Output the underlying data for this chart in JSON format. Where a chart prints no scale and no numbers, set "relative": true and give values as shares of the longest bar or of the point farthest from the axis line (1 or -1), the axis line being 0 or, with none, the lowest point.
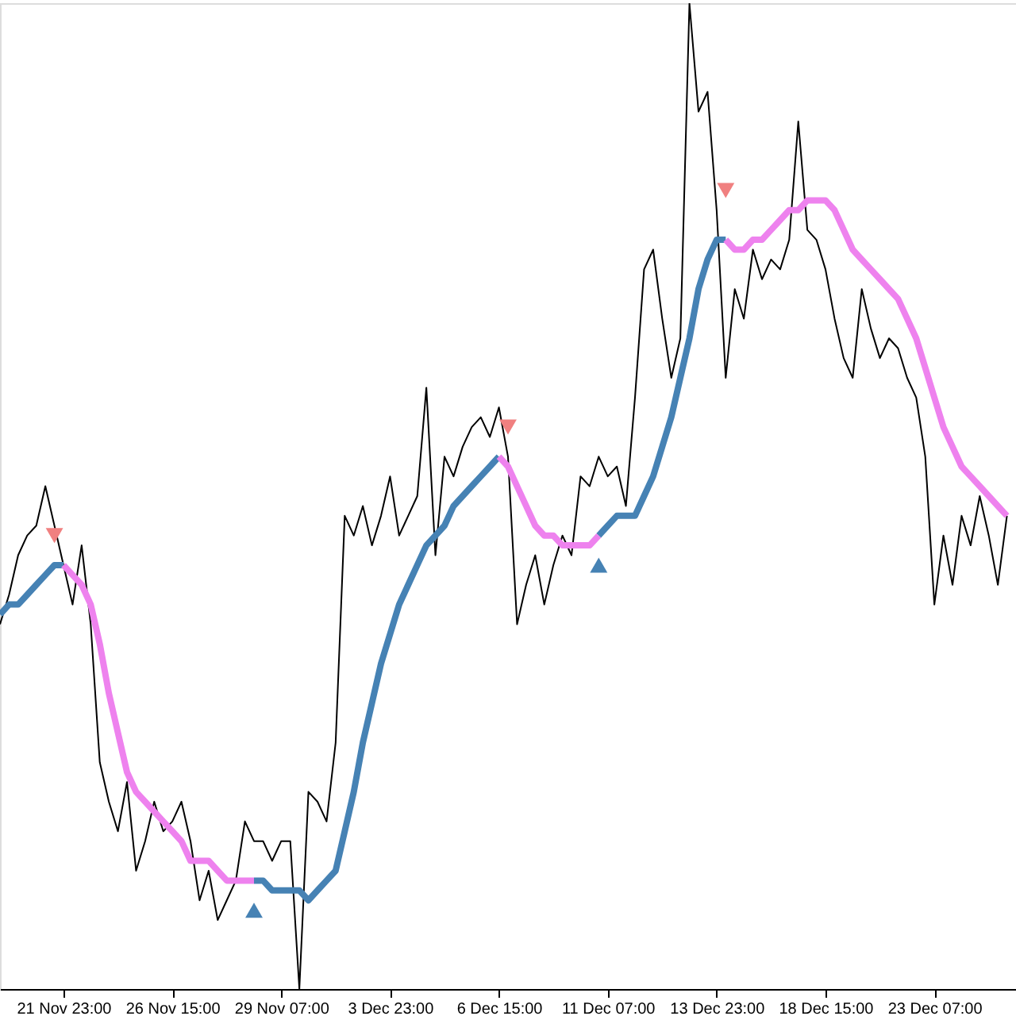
{
  "chart_data": {
    "type": "line",
    "relative": true,
    "grid": false,
    "line_style": "solid",
    "categories": [
      null,
      null,
      null,
      null,
      null,
      null,
      null,
      "21 Nov 23:00",
      null,
      null,
      null,
      null,
      null,
      null,
      null,
      null,
      null,
      null,
      null,
      "26 Nov 15:00",
      null,
      null,
      null,
      null,
      null,
      null,
      null,
      null,
      null,
      null,
      null,
      "29 Nov 07:00",
      null,
      null,
      null,
      null,
      null,
      null,
      null,
      null,
      null,
      null,
      null,
      "3 Dec 23:00",
      null,
      null,
      null,
      null,
      null,
      null,
      null,
      null,
      null,
      null,
      null,
      "6 Dec 15:00",
      null,
      null,
      null,
      null,
      null,
      null,
      null,
      null,
      null,
      null,
      null,
      "11 Dec 07:00",
      null,
      null,
      null,
      null,
      null,
      null,
      null,
      null,
      null,
      null,
      null,
      "13 Dec 23:00",
      null,
      null,
      null,
      null,
      null,
      null,
      null,
      null,
      null,
      null,
      null,
      "18 Dec 15:00",
      null,
      null,
      null,
      null,
      null,
      null,
      null,
      null,
      null,
      null,
      null,
      "23 Dec 07:00",
      null,
      null,
      null,
      null,
      null,
      null,
      null,
      null
    ],
    "series": [
      {
        "color": "#000000",
        "values": [
          0.37,
          0.4,
          0.44,
          0.46,
          0.47,
          0.51,
          0.47,
          0.43,
          0.39,
          0.45,
          0.37,
          0.23,
          0.19,
          0.16,
          0.21,
          0.12,
          0.15,
          0.19,
          0.16,
          0.17,
          0.19,
          0.15,
          0.09,
          0.12,
          0.07,
          0.09,
          0.11,
          0.17,
          0.15,
          0.15,
          0.13,
          0.15,
          0.15,
          0.0,
          0.2,
          0.19,
          0.17,
          0.25,
          0.48,
          0.46,
          0.49,
          0.45,
          0.48,
          0.52,
          0.46,
          0.48,
          0.5,
          0.61,
          0.44,
          0.54,
          0.52,
          0.55,
          0.57,
          0.58,
          0.56,
          0.59,
          0.54,
          0.37,
          0.41,
          0.44,
          0.39,
          0.43,
          0.46,
          0.44,
          0.52,
          0.51,
          0.54,
          0.52,
          0.53,
          0.49,
          0.6,
          0.73,
          0.75,
          0.68,
          0.62,
          0.66,
          1.0,
          0.89,
          0.91,
          0.79,
          0.62,
          0.71,
          0.68,
          0.75,
          0.72,
          0.74,
          0.73,
          0.76,
          0.88,
          0.77,
          0.76,
          0.73,
          0.68,
          0.64,
          0.62,
          0.71,
          0.67,
          0.64,
          0.66,
          0.65,
          0.62,
          0.6,
          0.54,
          0.39,
          0.46,
          0.41,
          0.48,
          0.45,
          0.5,
          0.46,
          0.41,
          0.48
        ]
      },
      {
        "color": "#4682b4",
        "values": [
          0.38,
          0.39,
          0.39,
          0.4,
          0.41,
          0.42,
          0.43,
          0.43,
          null,
          null,
          null,
          null,
          null,
          null,
          null,
          null,
          null,
          null,
          null,
          null,
          null,
          null,
          null,
          null,
          null,
          null,
          null,
          null,
          0.11,
          0.11,
          0.1,
          0.1,
          0.1,
          0.1,
          0.09,
          0.1,
          0.11,
          0.12,
          0.16,
          0.2,
          0.25,
          0.29,
          0.33,
          0.36,
          0.39,
          0.41,
          0.43,
          0.45,
          0.46,
          0.47,
          0.49,
          0.5,
          0.51,
          0.52,
          0.53,
          0.54,
          null,
          null,
          null,
          null,
          null,
          null,
          null,
          null,
          null,
          null,
          0.46,
          0.47,
          0.48,
          0.48,
          0.48,
          0.5,
          0.52,
          0.55,
          0.58,
          0.62,
          0.66,
          0.71,
          0.74,
          0.76,
          0.76,
          null,
          null,
          null,
          null,
          null,
          null,
          null,
          null,
          null,
          null,
          null,
          null,
          null,
          null,
          null,
          null,
          null,
          null,
          null,
          null,
          null,
          null,
          null,
          null,
          null,
          null,
          null,
          null,
          null,
          null,
          null
        ]
      },
      {
        "color": "#ee82ee",
        "values": [
          null,
          null,
          null,
          null,
          null,
          null,
          null,
          0.43,
          0.42,
          0.41,
          0.39,
          0.35,
          0.3,
          0.26,
          0.22,
          0.2,
          0.19,
          0.18,
          0.17,
          0.16,
          0.15,
          0.13,
          0.13,
          0.13,
          0.12,
          0.11,
          0.11,
          0.11,
          0.11,
          null,
          null,
          null,
          null,
          null,
          null,
          null,
          null,
          null,
          null,
          null,
          null,
          null,
          null,
          null,
          null,
          null,
          null,
          null,
          null,
          null,
          null,
          null,
          null,
          null,
          null,
          0.54,
          0.53,
          0.51,
          0.49,
          0.47,
          0.46,
          0.46,
          0.45,
          0.45,
          0.45,
          0.45,
          0.46,
          null,
          null,
          null,
          null,
          null,
          null,
          null,
          null,
          null,
          null,
          null,
          null,
          null,
          0.76,
          0.75,
          0.75,
          0.76,
          0.76,
          0.77,
          0.78,
          0.79,
          0.79,
          0.8,
          0.8,
          0.8,
          0.79,
          0.77,
          0.75,
          0.74,
          0.73,
          0.72,
          0.71,
          0.7,
          0.68,
          0.66,
          0.63,
          0.6,
          0.57,
          0.55,
          0.53,
          0.52,
          0.51,
          0.5,
          0.49,
          0.48
        ]
      },
      {
        "type": "scatter",
        "marker": "triangle",
        "color": "#f08080",
        "values": [
          null,
          null,
          null,
          null,
          null,
          null,
          0.46,
          null,
          null,
          null,
          null,
          null,
          null,
          null,
          null,
          null,
          null,
          null,
          null,
          null,
          null,
          null,
          null,
          null,
          null,
          null,
          null,
          null,
          null,
          null,
          null,
          null,
          null,
          null,
          null,
          null,
          null,
          null,
          null,
          null,
          null,
          null,
          null,
          null,
          null,
          null,
          null,
          null,
          null,
          null,
          null,
          null,
          null,
          null,
          null,
          null,
          0.57,
          null,
          null,
          null,
          null,
          null,
          null,
          null,
          null,
          null,
          null,
          null,
          null,
          null,
          null,
          null,
          null,
          null,
          null,
          null,
          null,
          null,
          null,
          null,
          0.81,
          null,
          null,
          null,
          null,
          null,
          null,
          null,
          null,
          null,
          null,
          null,
          null,
          null,
          null,
          null,
          null,
          null,
          null,
          null,
          null,
          null,
          null,
          null,
          null,
          null,
          null,
          null,
          null,
          null,
          null,
          null
        ]
      },
      {
        "type": "scatter",
        "marker": "triangle",
        "color": "#4682b4",
        "values": [
          null,
          null,
          null,
          null,
          null,
          null,
          null,
          null,
          null,
          null,
          null,
          null,
          null,
          null,
          null,
          null,
          null,
          null,
          null,
          null,
          null,
          null,
          null,
          null,
          null,
          null,
          null,
          null,
          0.08,
          null,
          null,
          null,
          null,
          null,
          null,
          null,
          null,
          null,
          null,
          null,
          null,
          null,
          null,
          null,
          null,
          null,
          null,
          null,
          null,
          null,
          null,
          null,
          null,
          null,
          null,
          null,
          null,
          null,
          null,
          null,
          null,
          null,
          null,
          null,
          null,
          null,
          0.43,
          null,
          null,
          null,
          null,
          null,
          null,
          null,
          null,
          null,
          null,
          null,
          null,
          null,
          null,
          null,
          null,
          null,
          null,
          null,
          null,
          null,
          null,
          null,
          null,
          null,
          null,
          null,
          null,
          null,
          null,
          null,
          null,
          null,
          null,
          null,
          null,
          null,
          null,
          null,
          null,
          null,
          null,
          null,
          null,
          null
        ]
      }
    ]
  }
}
